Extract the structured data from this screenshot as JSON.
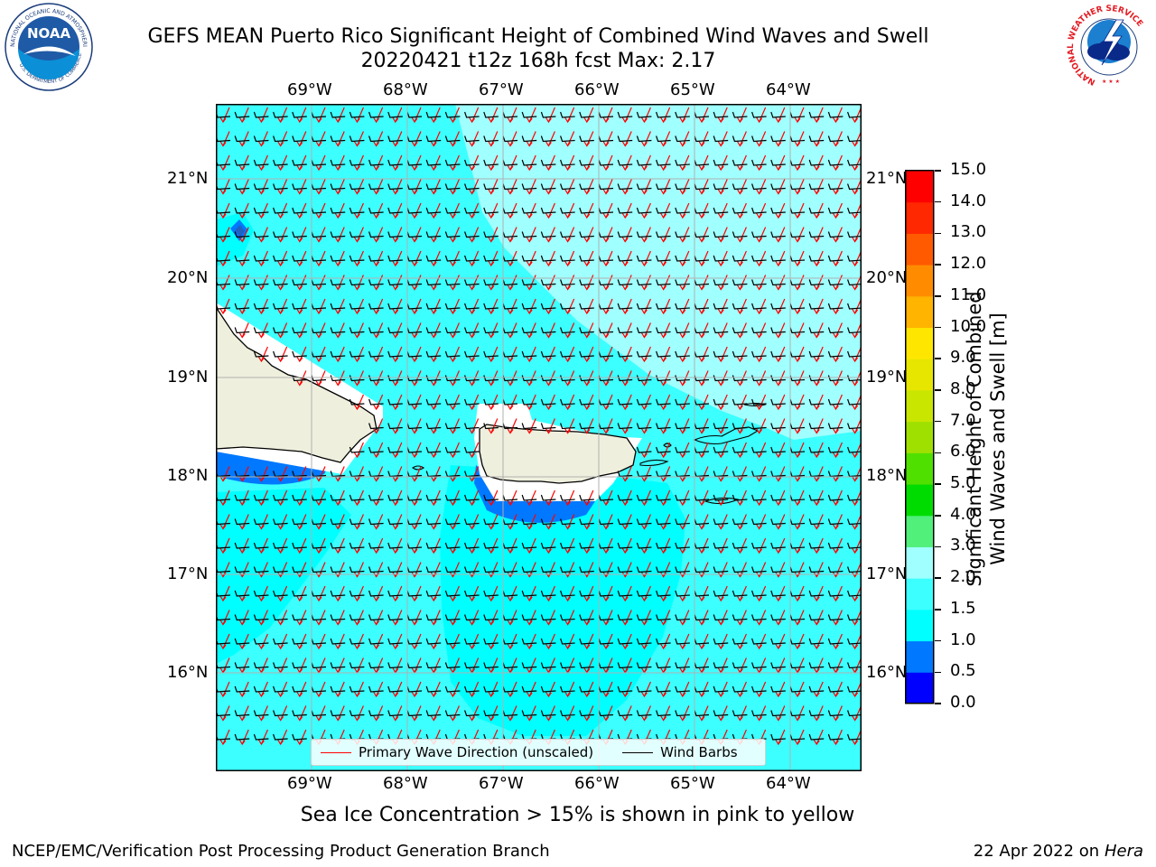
{
  "header": {
    "title_line1": "GEFS MEAN Puerto Rico Significant Height of Combined Wind Waves and Swell",
    "title_line2": "20220421 t12z 168h fcst   Max: 2.17"
  },
  "logos": {
    "noaa": {
      "text": "NOAA",
      "ring_text": "NATIONAL OCEANIC AND ATMOSPHERIC ADMINISTRATION",
      "ring_text_bottom": "U.S. DEPARTMENT OF COMMERCE"
    },
    "nws": {
      "ring_text": "NATIONAL WEATHER SERVICE"
    }
  },
  "map": {
    "lon_labels": [
      "69°W",
      "68°W",
      "67°W",
      "66°W",
      "65°W",
      "64°W"
    ],
    "lat_labels": [
      "21°N",
      "20°N",
      "19°N",
      "18°N",
      "17°N",
      "16°N"
    ],
    "colors": {
      "land": "#efefde",
      "coast": "#000000",
      "grid": "#b0b0b0",
      "wave_arrow": "#ff0000",
      "barb": "#000000"
    }
  },
  "legend": {
    "wave_label": "Primary Wave Direction (unscaled)",
    "barb_label": "Wind Barbs",
    "wave_color": "#ff0000",
    "barb_color": "#000000"
  },
  "colorbar": {
    "label_line1": "Significant Height of Combined",
    "label_line2": "Wind Waves and Swell [m]",
    "ticks": [
      "0.0",
      "0.5",
      "1.0",
      "1.5",
      "2.0",
      "3.0",
      "4.0",
      "5.0",
      "6.0",
      "7.0",
      "8.0",
      "9.0",
      "10.0",
      "11.0",
      "12.0",
      "13.0",
      "14.0",
      "15.0"
    ],
    "colors": [
      "#0000ff",
      "#0078ff",
      "#00ffff",
      "#3cffff",
      "#a0ffff",
      "#50f07a",
      "#00dc00",
      "#50e000",
      "#a0e000",
      "#c8e600",
      "#e6e600",
      "#ffe600",
      "#ffb400",
      "#ff8c00",
      "#ff5a00",
      "#ff2800",
      "#ff0000"
    ]
  },
  "footer": {
    "note": "Sea Ice Concentration > 15% is shown in pink to yellow",
    "left": "NCEP/EMC/Verification Post Processing Product Generation Branch",
    "right_date": "22 Apr 2022 on ",
    "right_machine": "Hera"
  }
}
